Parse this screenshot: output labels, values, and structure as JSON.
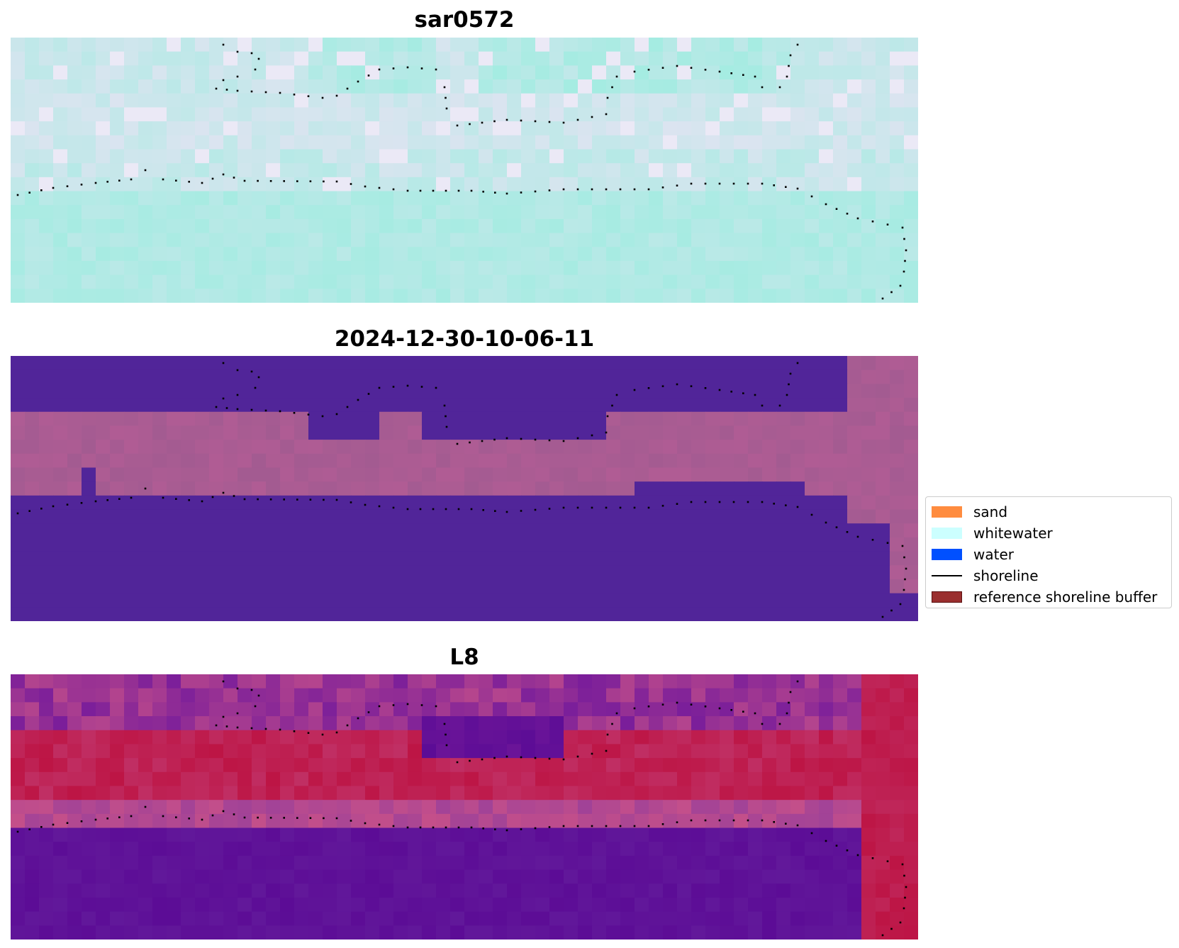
{
  "panels": [
    {
      "title": "sar0572",
      "palette": "sar"
    },
    {
      "title": "2024-12-30-10-06-11",
      "palette": "class"
    },
    {
      "title": "L8",
      "palette": "l8"
    }
  ],
  "legend": {
    "items": [
      {
        "label": "sand",
        "color": "#ff8c3f",
        "kind": "patch"
      },
      {
        "label": "whitewater",
        "color": "#ccffff",
        "kind": "patch"
      },
      {
        "label": "water",
        "color": "#0050ff",
        "kind": "patch"
      },
      {
        "label": "shoreline",
        "color": "#000000",
        "kind": "line"
      },
      {
        "label": "reference shoreline buffer",
        "color": "#9a2f2f",
        "kind": "patch"
      }
    ]
  },
  "colors": {
    "sar_cyan": "#a2ece1",
    "sar_pale": "#dbe4f0",
    "class_water": "#512599",
    "class_land": "#b05c94",
    "l8_purple": "#5c0c96",
    "l8_red": "#bd1545",
    "l8_pink": "#c44f8a",
    "shoreline_dots": "#000000"
  }
}
